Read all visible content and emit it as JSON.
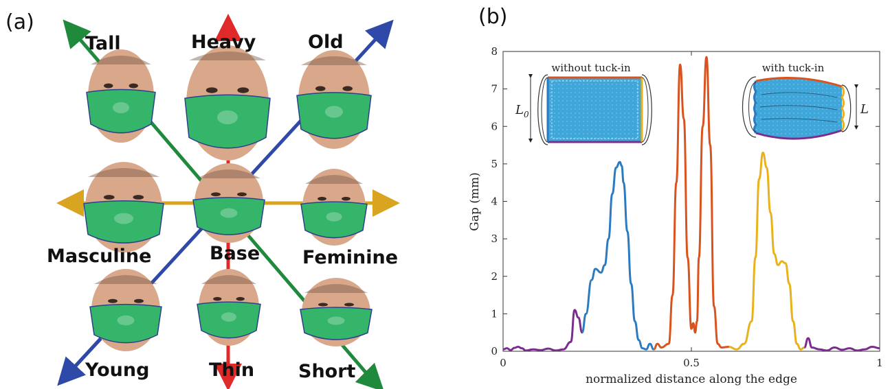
{
  "panel_a": {
    "label": "(a)",
    "axes_labels": {
      "tall": "Tall",
      "heavy": "Heavy",
      "old": "Old",
      "masculine": "Masculine",
      "base": "Base",
      "feminine": "Feminine",
      "young": "Young",
      "thin": "Thin",
      "short": "Short"
    },
    "axis_colors": {
      "green": "#1f8a3c",
      "red": "#e02a2a",
      "blue": "#2e49a8",
      "yellow": "#d9a520"
    },
    "mask_color": "#35b56a",
    "skin_color": "#d9a88a"
  },
  "panel_b": {
    "label": "(b)",
    "inset_left_label": "without tuck-in",
    "inset_right_label": "with tuck-in",
    "inset_left_dim": "L",
    "inset_left_dim_sub": "0",
    "inset_right_dim": "L",
    "inset_fill": "#3ea6d8"
  },
  "chart_data": {
    "type": "line",
    "xlabel": "normalized distance along the edge",
    "ylabel": "Gap (mm)",
    "xlim": [
      0,
      1
    ],
    "ylim": [
      0,
      8
    ],
    "xticks": [
      "0",
      "0.5",
      "1"
    ],
    "yticks": [
      "0",
      "1",
      "2",
      "3",
      "4",
      "5",
      "6",
      "7",
      "8"
    ],
    "grid": false,
    "series": [
      {
        "color": "#7b2d8e",
        "x": [
          0.0,
          0.01,
          0.02,
          0.03,
          0.04,
          0.05,
          0.06,
          0.08,
          0.1,
          0.12,
          0.14,
          0.16,
          0.18,
          0.19,
          0.2,
          0.21
        ],
        "y": [
          0.05,
          0.08,
          0.03,
          0.09,
          0.12,
          0.08,
          0.02,
          0.05,
          0.03,
          0.07,
          0.02,
          0.05,
          0.25,
          1.1,
          0.9,
          0.5
        ]
      },
      {
        "color": "#2a7bbf",
        "x": [
          0.21,
          0.22,
          0.235,
          0.245,
          0.26,
          0.27,
          0.28,
          0.29,
          0.3,
          0.31,
          0.315,
          0.32,
          0.33,
          0.34,
          0.35,
          0.36,
          0.37,
          0.38,
          0.39,
          0.4
        ],
        "y": [
          0.5,
          1.0,
          1.9,
          2.2,
          2.1,
          2.3,
          3.0,
          4.2,
          4.9,
          5.05,
          4.95,
          4.5,
          3.2,
          1.8,
          0.8,
          0.3,
          0.08,
          0.05,
          0.2,
          0.05
        ]
      },
      {
        "color": "#d9531e",
        "x": [
          0.4,
          0.41,
          0.42,
          0.44,
          0.45,
          0.46,
          0.47,
          0.48,
          0.49,
          0.5,
          0.505,
          0.51,
          0.515,
          0.52,
          0.53,
          0.54,
          0.55,
          0.56,
          0.57,
          0.58,
          0.6
        ],
        "y": [
          0.05,
          0.2,
          0.1,
          0.2,
          1.5,
          4.5,
          7.65,
          6.2,
          2.5,
          0.6,
          0.75,
          0.5,
          0.8,
          2.5,
          6.0,
          7.85,
          5.5,
          1.2,
          0.2,
          0.1,
          0.12
        ]
      },
      {
        "color": "#e8b21a",
        "x": [
          0.6,
          0.62,
          0.64,
          0.66,
          0.67,
          0.68,
          0.69,
          0.7,
          0.71,
          0.72,
          0.73,
          0.74,
          0.75,
          0.76,
          0.77,
          0.78,
          0.79,
          0.8
        ],
        "y": [
          0.12,
          0.05,
          0.2,
          0.8,
          2.5,
          4.6,
          5.3,
          4.9,
          3.7,
          2.6,
          2.3,
          2.4,
          2.35,
          1.8,
          0.8,
          0.2,
          0.05,
          0.1
        ]
      },
      {
        "color": "#7b2d8e",
        "x": [
          0.8,
          0.81,
          0.82,
          0.84,
          0.86,
          0.88,
          0.9,
          0.92,
          0.94,
          0.96,
          0.98,
          1.0
        ],
        "y": [
          0.1,
          0.35,
          0.1,
          0.05,
          0.02,
          0.1,
          0.04,
          0.08,
          0.02,
          0.05,
          0.12,
          0.08
        ]
      }
    ]
  }
}
